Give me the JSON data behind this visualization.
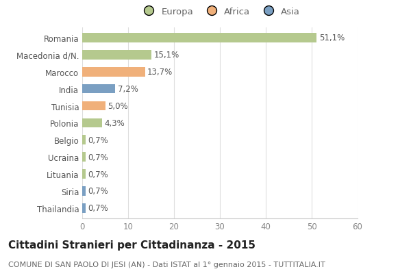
{
  "categories": [
    "Romania",
    "Macedonia d/N.",
    "Marocco",
    "India",
    "Tunisia",
    "Polonia",
    "Belgio",
    "Ucraina",
    "Lituania",
    "Siria",
    "Thailandia"
  ],
  "values": [
    51.1,
    15.1,
    13.7,
    7.2,
    5.0,
    4.3,
    0.7,
    0.7,
    0.7,
    0.7,
    0.7
  ],
  "labels": [
    "51,1%",
    "15,1%",
    "13,7%",
    "7,2%",
    "5,0%",
    "4,3%",
    "0,7%",
    "0,7%",
    "0,7%",
    "0,7%",
    "0,7%"
  ],
  "colors": [
    "#b5c98e",
    "#b5c98e",
    "#f0b07a",
    "#7a9fc2",
    "#f0b07a",
    "#b5c98e",
    "#b5c98e",
    "#b5c98e",
    "#b5c98e",
    "#7a9fc2",
    "#7a9fc2"
  ],
  "legend_labels": [
    "Europa",
    "Africa",
    "Asia"
  ],
  "legend_colors": [
    "#b5c98e",
    "#f0b07a",
    "#7a9fc2"
  ],
  "xlim": [
    0,
    60
  ],
  "xticks": [
    0,
    10,
    20,
    30,
    40,
    50,
    60
  ],
  "title": "Cittadini Stranieri per Cittadinanza - 2015",
  "subtitle": "COMUNE DI SAN PAOLO DI JESI (AN) - Dati ISTAT al 1° gennaio 2015 - TUTTITALIA.IT",
  "bg_color": "#ffffff",
  "grid_color": "#dddddd",
  "bar_height": 0.55,
  "title_fontsize": 11,
  "subtitle_fontsize": 8,
  "label_fontsize": 8.5,
  "tick_fontsize": 8.5,
  "legend_fontsize": 9.5
}
